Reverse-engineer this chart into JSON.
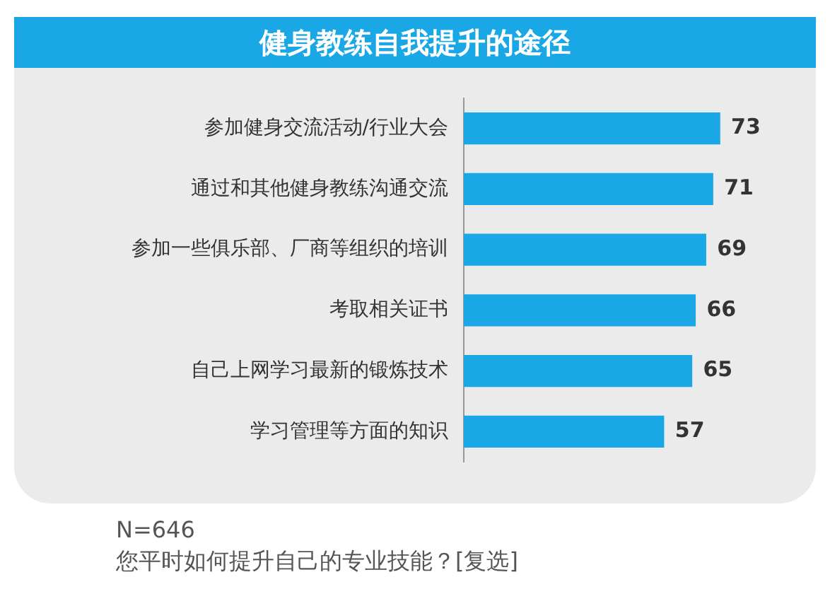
{
  "chart_data": {
    "type": "bar",
    "orientation": "horizontal",
    "title": "健身教练自我提升的途径",
    "categories": [
      "参加健身交流活动/行业大会",
      "通过和其他健身教练沟通交流",
      "参加一些俱乐部、厂商等组织的培训",
      "考取相关证书",
      "自己上网学习最新的锻炼技术",
      "学习管理等方面的知识"
    ],
    "values": [
      73,
      71,
      69,
      66,
      65,
      57
    ],
    "color": "#1aa7e6",
    "data_labels": true,
    "annotations": [
      "N=646",
      "您平时如何提升自己的专业技能？[复选]"
    ]
  }
}
